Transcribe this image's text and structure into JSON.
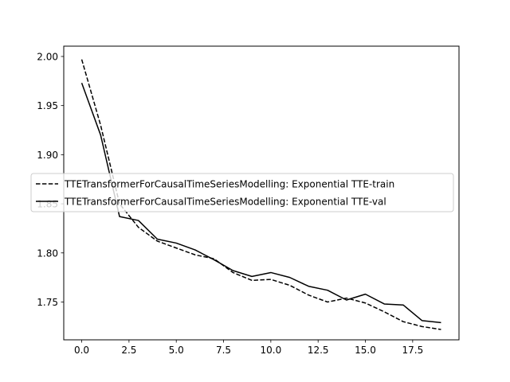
{
  "chart_data": {
    "type": "line",
    "title": "",
    "xlabel": "",
    "ylabel": "",
    "xlim": [
      -0.95,
      19.95
    ],
    "ylim": [
      1.7115,
      2.0105
    ],
    "grid": false,
    "legend_placement": "center-left",
    "x_ticks": [
      0.0,
      2.5,
      5.0,
      7.5,
      10.0,
      12.5,
      15.0,
      17.5
    ],
    "x_tick_labels": [
      "0.0",
      "2.5",
      "5.0",
      "7.5",
      "10.0",
      "12.5",
      "15.0",
      "17.5"
    ],
    "y_ticks": [
      1.75,
      1.8,
      1.85,
      1.9,
      1.95,
      2.0
    ],
    "y_tick_labels": [
      "1.75",
      "1.80",
      "1.85",
      "1.90",
      "1.95",
      "2.00"
    ],
    "x": [
      0,
      1,
      2,
      3,
      4,
      5,
      6,
      7,
      8,
      9,
      10,
      11,
      12,
      13,
      14,
      15,
      16,
      17,
      18,
      19
    ],
    "series": [
      {
        "name": "TTETransformerForCausalTimeSeriesModelling: Exponential TTE-train",
        "style": "dashed",
        "color": "#000000",
        "values": [
          1.997,
          1.93,
          1.85,
          1.826,
          1.812,
          1.805,
          1.798,
          1.794,
          1.78,
          1.772,
          1.773,
          1.767,
          1.757,
          1.75,
          1.754,
          1.749,
          1.74,
          1.73,
          1.725,
          1.722
        ]
      },
      {
        "name": "TTETransformerForCausalTimeSeriesModelling: Exponential TTE-val",
        "style": "solid",
        "color": "#000000",
        "values": [
          1.973,
          1.92,
          1.837,
          1.833,
          1.814,
          1.81,
          1.803,
          1.793,
          1.782,
          1.776,
          1.78,
          1.775,
          1.766,
          1.762,
          1.752,
          1.758,
          1.748,
          1.747,
          1.731,
          1.729
        ]
      }
    ]
  }
}
